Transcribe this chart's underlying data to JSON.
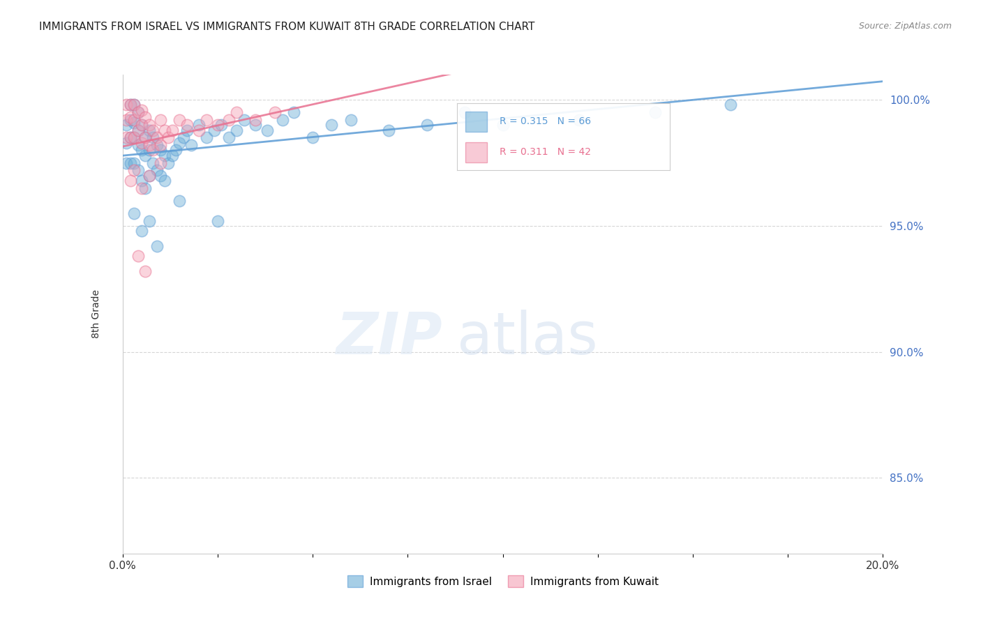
{
  "title": "IMMIGRANTS FROM ISRAEL VS IMMIGRANTS FROM KUWAIT 8TH GRADE CORRELATION CHART",
  "source": "Source: ZipAtlas.com",
  "ylabel": "8th Grade",
  "xmin": 0.0,
  "xmax": 0.2,
  "ymin": 0.82,
  "ymax": 1.01,
  "yticks": [
    0.85,
    0.9,
    0.95,
    1.0
  ],
  "ytick_labels": [
    "85.0%",
    "90.0%",
    "95.0%",
    "100.0%"
  ],
  "R_israel": 0.315,
  "N_israel": 66,
  "R_kuwait": 0.311,
  "N_kuwait": 42,
  "israel_color": "#6baed6",
  "kuwait_color": "#f4a0b5",
  "israel_line_color": "#5b9bd5",
  "kuwait_line_color": "#e87090",
  "legend_israel": "Immigrants from Israel",
  "legend_kuwait": "Immigrants from Kuwait",
  "israel_x": [
    0.001,
    0.001,
    0.001,
    0.002,
    0.002,
    0.002,
    0.002,
    0.003,
    0.003,
    0.003,
    0.003,
    0.004,
    0.004,
    0.004,
    0.004,
    0.005,
    0.005,
    0.005,
    0.006,
    0.006,
    0.006,
    0.007,
    0.007,
    0.007,
    0.008,
    0.008,
    0.009,
    0.009,
    0.01,
    0.01,
    0.011,
    0.011,
    0.012,
    0.013,
    0.014,
    0.015,
    0.016,
    0.017,
    0.018,
    0.02,
    0.022,
    0.024,
    0.026,
    0.028,
    0.03,
    0.032,
    0.035,
    0.038,
    0.042,
    0.045,
    0.05,
    0.055,
    0.06,
    0.07,
    0.08,
    0.09,
    0.1,
    0.12,
    0.14,
    0.16,
    0.003,
    0.005,
    0.007,
    0.009,
    0.015,
    0.025
  ],
  "israel_y": [
    0.99,
    0.983,
    0.975,
    0.998,
    0.992,
    0.985,
    0.975,
    0.998,
    0.991,
    0.985,
    0.975,
    0.995,
    0.988,
    0.982,
    0.972,
    0.99,
    0.98,
    0.968,
    0.985,
    0.978,
    0.965,
    0.988,
    0.98,
    0.97,
    0.985,
    0.975,
    0.982,
    0.972,
    0.98,
    0.97,
    0.978,
    0.968,
    0.975,
    0.978,
    0.98,
    0.983,
    0.985,
    0.988,
    0.982,
    0.99,
    0.985,
    0.988,
    0.99,
    0.985,
    0.988,
    0.992,
    0.99,
    0.988,
    0.992,
    0.995,
    0.985,
    0.99,
    0.992,
    0.988,
    0.99,
    0.995,
    0.99,
    0.992,
    0.995,
    0.998,
    0.955,
    0.948,
    0.952,
    0.942,
    0.96,
    0.952
  ],
  "kuwait_x": [
    0.001,
    0.001,
    0.001,
    0.002,
    0.002,
    0.002,
    0.003,
    0.003,
    0.003,
    0.004,
    0.004,
    0.005,
    0.005,
    0.005,
    0.006,
    0.006,
    0.007,
    0.007,
    0.008,
    0.008,
    0.009,
    0.01,
    0.01,
    0.011,
    0.012,
    0.013,
    0.015,
    0.017,
    0.02,
    0.022,
    0.025,
    0.028,
    0.03,
    0.035,
    0.04,
    0.002,
    0.003,
    0.005,
    0.007,
    0.01,
    0.004,
    0.006
  ],
  "kuwait_y": [
    0.998,
    0.992,
    0.985,
    0.998,
    0.993,
    0.985,
    0.998,
    0.992,
    0.985,
    0.995,
    0.988,
    0.996,
    0.99,
    0.983,
    0.993,
    0.985,
    0.99,
    0.982,
    0.988,
    0.98,
    0.985,
    0.992,
    0.982,
    0.988,
    0.985,
    0.988,
    0.992,
    0.99,
    0.988,
    0.992,
    0.99,
    0.992,
    0.995,
    0.992,
    0.995,
    0.968,
    0.972,
    0.965,
    0.97,
    0.975,
    0.938,
    0.932
  ]
}
